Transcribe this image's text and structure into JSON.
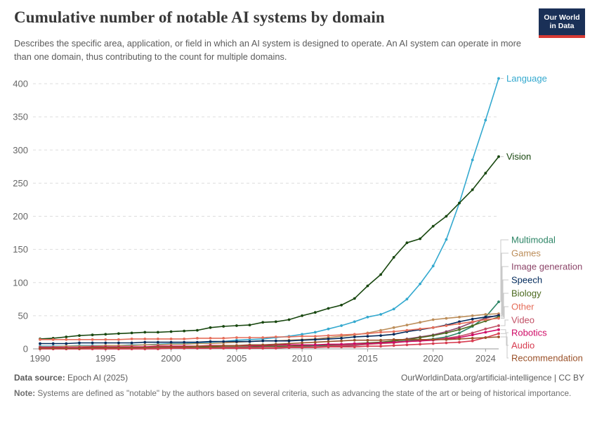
{
  "header": {
    "title": "Cumulative number of notable AI systems by domain",
    "subtitle": "Describes the specific area, application, or field in which an AI system is designed to operate. An AI system can operate in more than one domain, thus contributing to the count for multiple domains.",
    "logo": {
      "line1": "Our World",
      "line2": "in Data",
      "bg_color": "#1a3057",
      "accent_color": "#d73a34"
    }
  },
  "chart_data": {
    "type": "line",
    "title": "Cumulative number of notable AI systems by domain",
    "xlabel": "",
    "ylabel": "",
    "x": [
      1990,
      1991,
      1992,
      1993,
      1994,
      1995,
      1996,
      1997,
      1998,
      1999,
      2000,
      2001,
      2002,
      2003,
      2004,
      2005,
      2006,
      2007,
      2008,
      2009,
      2010,
      2011,
      2012,
      2013,
      2014,
      2015,
      2016,
      2017,
      2018,
      2019,
      2020,
      2021,
      2022,
      2023,
      2024,
      2025
    ],
    "x_ticks": [
      1990,
      1995,
      2000,
      2005,
      2010,
      2015,
      2020,
      2024
    ],
    "y_ticks": [
      0,
      50,
      100,
      150,
      200,
      250,
      300,
      350,
      400
    ],
    "ylim": [
      0,
      420
    ],
    "grid": true,
    "gridline_color": "#dddddd",
    "axis_text_color": "#666666",
    "legend_position": "right-end-labels",
    "series": [
      {
        "name": "Language",
        "color": "#34a9cf",
        "values": [
          4,
          4,
          4,
          5,
          5,
          5,
          5,
          6,
          6,
          7,
          8,
          8,
          9,
          10,
          11,
          13,
          14,
          15,
          17,
          19,
          22,
          25,
          30,
          35,
          41,
          48,
          52,
          60,
          75,
          98,
          125,
          165,
          220,
          285,
          345,
          408
        ]
      },
      {
        "name": "Vision",
        "color": "#18470f",
        "values": [
          15,
          16,
          18,
          20,
          21,
          22,
          23,
          24,
          25,
          25,
          26,
          27,
          28,
          32,
          34,
          35,
          36,
          40,
          41,
          44,
          50,
          55,
          61,
          66,
          76,
          95,
          112,
          138,
          160,
          166,
          185,
          200,
          220,
          240,
          265,
          290
        ]
      },
      {
        "name": "Multimodal",
        "color": "#2c8465",
        "values": [
          1,
          1,
          1,
          1,
          1,
          1,
          1,
          1,
          2,
          2,
          2,
          2,
          2,
          3,
          3,
          3,
          3,
          4,
          4,
          4,
          4,
          5,
          5,
          6,
          7,
          8,
          9,
          10,
          12,
          13,
          15,
          18,
          24,
          34,
          48,
          71
        ]
      },
      {
        "name": "Games",
        "color": "#bc8e5a",
        "values": [
          3,
          3,
          4,
          4,
          4,
          5,
          5,
          5,
          6,
          6,
          7,
          7,
          8,
          8,
          9,
          10,
          11,
          12,
          12,
          13,
          14,
          15,
          17,
          19,
          21,
          24,
          28,
          32,
          36,
          40,
          44,
          46,
          48,
          50,
          52,
          53
        ]
      },
      {
        "name": "Image generation",
        "color": "#8c4569",
        "values": [
          0,
          0,
          0,
          0,
          0,
          0,
          0,
          0,
          0,
          0,
          1,
          1,
          1,
          1,
          1,
          1,
          1,
          1,
          2,
          2,
          2,
          3,
          3,
          4,
          5,
          7,
          9,
          12,
          15,
          18,
          21,
          26,
          32,
          40,
          46,
          51
        ]
      },
      {
        "name": "Speech",
        "color": "#00295b",
        "values": [
          8,
          8,
          8,
          9,
          9,
          9,
          9,
          9,
          10,
          10,
          10,
          10,
          10,
          11,
          11,
          11,
          11,
          12,
          12,
          12,
          13,
          14,
          15,
          16,
          18,
          19,
          20,
          22,
          26,
          29,
          32,
          36,
          41,
          45,
          48,
          50
        ]
      },
      {
        "name": "Biology",
        "color": "#4c6a1f",
        "values": [
          1,
          1,
          1,
          1,
          1,
          1,
          1,
          2,
          2,
          2,
          2,
          2,
          2,
          3,
          3,
          3,
          3,
          4,
          4,
          4,
          5,
          6,
          6,
          7,
          8,
          9,
          10,
          12,
          14,
          17,
          20,
          24,
          29,
          35,
          42,
          48
        ]
      },
      {
        "name": "Other",
        "color": "#e56e5a",
        "values": [
          14,
          14,
          14,
          14,
          14,
          14,
          14,
          15,
          15,
          15,
          15,
          15,
          16,
          16,
          16,
          17,
          17,
          17,
          18,
          18,
          19,
          19,
          20,
          21,
          22,
          23,
          25,
          26,
          28,
          30,
          32,
          35,
          38,
          41,
          44,
          46
        ]
      },
      {
        "name": "Video",
        "color": "#c15065",
        "values": [
          0,
          0,
          0,
          0,
          0,
          0,
          0,
          0,
          0,
          1,
          1,
          1,
          1,
          1,
          2,
          2,
          2,
          2,
          2,
          3,
          3,
          3,
          4,
          5,
          6,
          7,
          8,
          9,
          11,
          12,
          14,
          16,
          19,
          24,
          30,
          35
        ]
      },
      {
        "name": "Robotics",
        "color": "#cf0a66",
        "values": [
          2,
          2,
          2,
          2,
          3,
          3,
          3,
          3,
          3,
          4,
          4,
          4,
          4,
          5,
          5,
          5,
          5,
          5,
          6,
          6,
          6,
          6,
          7,
          7,
          8,
          8,
          9,
          10,
          11,
          12,
          13,
          15,
          17,
          21,
          25,
          29
        ]
      },
      {
        "name": "Audio",
        "color": "#d73c50",
        "values": [
          0,
          0,
          0,
          0,
          0,
          0,
          0,
          0,
          0,
          0,
          1,
          1,
          1,
          1,
          1,
          1,
          1,
          1,
          1,
          2,
          2,
          2,
          3,
          3,
          3,
          4,
          4,
          5,
          6,
          7,
          8,
          9,
          10,
          12,
          17,
          23
        ]
      },
      {
        "name": "Recommendation",
        "color": "#9a5129",
        "values": [
          1,
          1,
          1,
          1,
          2,
          2,
          2,
          2,
          2,
          3,
          3,
          3,
          4,
          4,
          5,
          5,
          6,
          6,
          7,
          8,
          9,
          10,
          11,
          12,
          13,
          13,
          13,
          14,
          14,
          14,
          14,
          14,
          15,
          16,
          17,
          18
        ]
      }
    ]
  },
  "footer": {
    "datasource_label": "Data source:",
    "datasource_value": " Epoch AI (2025)",
    "link": "OurWorldinData.org/artificial-intelligence | CC BY",
    "note_label": "Note:",
    "note_value": " Systems are defined as \"notable\" by the authors based on several criteria, such as advancing the state of the art or being of historical importance."
  }
}
